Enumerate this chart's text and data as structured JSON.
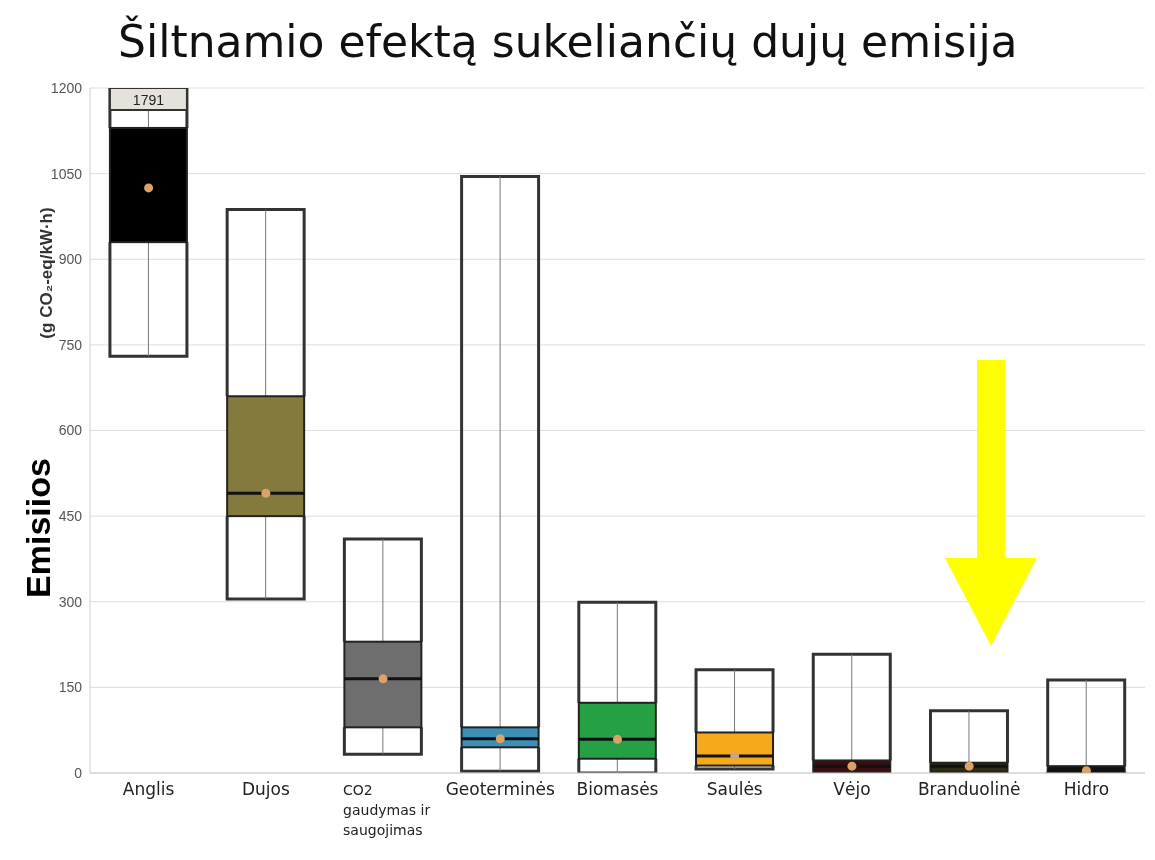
{
  "chart_data": {
    "type": "box",
    "title": "Šiltnamio efektą sukeliančių dujų emisija",
    "ylabel": "(g CO₂-eq/kW·h)",
    "annotations": [
      "Emisiios"
    ],
    "categories": [
      "Anglis",
      "Dujos",
      "CO2 gaudymas ir saugojimas",
      "Geoterminės",
      "Biomasės",
      "Saulės",
      "Vėjo",
      "Branduolinė",
      "Hidro"
    ],
    "colors": [
      "#000000",
      "#857a3e",
      "#6e6e6e",
      "#3e8fb5",
      "#26a045",
      "#f5aa1c",
      "#3b0d10",
      "#2e2c12",
      "#111111"
    ],
    "boxes": [
      {
        "low": 730,
        "q1": 930,
        "median": null,
        "q3": 1130,
        "high": 1791,
        "mean": 1025
      },
      {
        "low": 305,
        "q1": 450,
        "median": 490,
        "q3": 660,
        "high": 987,
        "mean": 490
      },
      {
        "low": 33,
        "q1": 80,
        "median": 165,
        "q3": 230,
        "high": 410,
        "mean": 165
      },
      {
        "low": 3,
        "q1": 45,
        "median": 60,
        "q3": 80,
        "high": 1045,
        "mean": 60
      },
      {
        "low": 0,
        "q1": 25,
        "median": 59,
        "q3": 123,
        "high": 299,
        "mean": 59
      },
      {
        "low": 7,
        "q1": 13,
        "median": 30,
        "q3": 71,
        "high": 181,
        "mean": 30
      },
      {
        "low": 2,
        "q1": 2,
        "median": 12,
        "q3": 22,
        "high": 208,
        "mean": 12
      },
      {
        "low": 2,
        "q1": 2,
        "median": 12,
        "q3": 18,
        "high": 109,
        "mean": 12
      },
      {
        "low": 0,
        "q1": 2,
        "median": 4,
        "q3": 12,
        "high": 163,
        "mean": 4
      }
    ],
    "value_labels": [
      "1791",
      null,
      null,
      null,
      null,
      null,
      null,
      null,
      null
    ],
    "ylim": [
      0,
      1200
    ],
    "yticks": [
      0,
      150,
      300,
      450,
      600,
      750,
      900,
      1050,
      1200
    ],
    "grid": "y"
  }
}
